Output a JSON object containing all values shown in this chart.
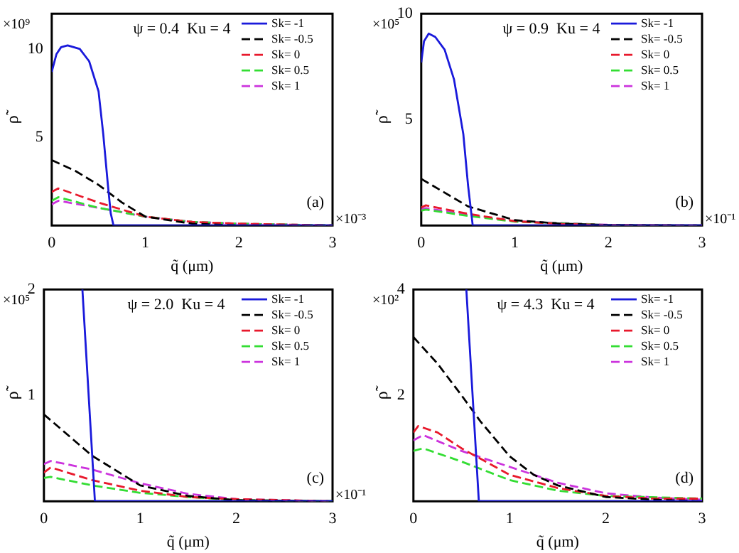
{
  "chart_data": [
    {
      "type": "line",
      "xlabel": "q̃ (μm)",
      "ylabel": "ρ̃",
      "xlim": [
        0,
        3
      ],
      "xticks": [
        0,
        1,
        2,
        3
      ],
      "ylim": [
        0,
        12
      ],
      "yticks": [
        5,
        10
      ],
      "legend": "top right",
      "annotations": [
        "ψ = 0.4  Ku = 4",
        "(a)",
        "×10⁹",
        "×10⁻³"
      ],
      "series": [
        {
          "name": "Sk= -1",
          "color": "#1a1adb",
          "line_style": "solid",
          "x": [
            0,
            0.05,
            0.1,
            0.17,
            0.3,
            0.4,
            0.5,
            0.55,
            0.6,
            0.63,
            0.66,
            1,
            2,
            3
          ],
          "values": [
            8.7,
            9.7,
            10.1,
            10.2,
            10.0,
            9.3,
            7.6,
            5.2,
            2.3,
            0.7,
            0,
            0,
            0,
            0
          ]
        },
        {
          "name": "Sk= -0.5",
          "color": "#000000",
          "line_style": "dashed",
          "x": [
            0,
            0.25,
            0.5,
            0.75,
            1,
            1.5,
            2,
            3
          ],
          "values": [
            3.7,
            3.1,
            2.3,
            1.3,
            0.5,
            0.1,
            0,
            0
          ]
        },
        {
          "name": "Sk= 0",
          "color": "#e8192c",
          "line_style": "dashed",
          "x": [
            0,
            0.07,
            0.5,
            1,
            1.5,
            2,
            3
          ],
          "values": [
            1.9,
            2.1,
            1.3,
            0.5,
            0.2,
            0.1,
            0
          ]
        },
        {
          "name": "Sk= 0.5",
          "color": "#33dd33",
          "line_style": "dashed",
          "x": [
            0,
            0.07,
            0.5,
            1,
            1.5,
            2,
            3
          ],
          "values": [
            1.4,
            1.6,
            1.0,
            0.5,
            0.2,
            0.1,
            0
          ]
        },
        {
          "name": "Sk= 1",
          "color": "#cc33dd",
          "line_style": "dashed",
          "x": [
            0,
            0.07,
            0.5,
            1,
            1.5,
            2,
            3
          ],
          "values": [
            1.2,
            1.4,
            1.0,
            0.5,
            0.2,
            0.1,
            0
          ]
        }
      ]
    },
    {
      "type": "line",
      "xlabel": "q̃ (μm)",
      "ylabel": "ρ̃",
      "xlim": [
        0,
        3
      ],
      "xticks": [
        0,
        1,
        2,
        3
      ],
      "ylim": [
        0,
        10
      ],
      "yticks": [
        5,
        10
      ],
      "legend": "top right",
      "annotations": [
        "ψ = 0.9  Ku = 4",
        "(b)",
        "×10⁵",
        "×10⁻¹"
      ],
      "series": [
        {
          "name": "Sk= -1",
          "color": "#1a1adb",
          "line_style": "solid",
          "x": [
            0,
            0.03,
            0.08,
            0.15,
            0.25,
            0.35,
            0.45,
            0.5,
            0.55,
            1,
            2,
            3
          ],
          "values": [
            7.7,
            8.7,
            9.06,
            8.9,
            8.3,
            6.9,
            4.3,
            1.9,
            0,
            0,
            0,
            0
          ]
        },
        {
          "name": "Sk= -0.5",
          "color": "#000000",
          "line_style": "dashed",
          "x": [
            0,
            0.5,
            1,
            1.5,
            2,
            3
          ],
          "values": [
            2.2,
            0.9,
            0.25,
            0.08,
            0.02,
            0
          ]
        },
        {
          "name": "Sk= 0",
          "color": "#e8192c",
          "line_style": "dashed",
          "x": [
            0,
            0.05,
            0.5,
            1,
            1.5,
            2,
            3
          ],
          "values": [
            0.85,
            0.95,
            0.55,
            0.2,
            0.07,
            0.02,
            0
          ]
        },
        {
          "name": "Sk= 0.5",
          "color": "#33dd33",
          "line_style": "dashed",
          "x": [
            0,
            0.05,
            0.5,
            1,
            2,
            3
          ],
          "values": [
            0.7,
            0.75,
            0.45,
            0.18,
            0.02,
            0
          ]
        },
        {
          "name": "Sk= 1",
          "color": "#cc33dd",
          "line_style": "dashed",
          "x": [
            0,
            0.05,
            0.5,
            1,
            2,
            3
          ],
          "values": [
            0.75,
            0.82,
            0.5,
            0.2,
            0.03,
            0
          ]
        }
      ]
    },
    {
      "type": "line",
      "xlabel": "q̃ (μm)",
      "ylabel": "ρ̃",
      "xlim": [
        0,
        3
      ],
      "xticks": [
        0,
        1,
        2,
        3
      ],
      "ylim": [
        0,
        2
      ],
      "yticks": [
        1,
        2
      ],
      "legend": "top right",
      "annotations": [
        "ψ = 2.0  Ku = 4",
        "(c)",
        "×10⁵",
        "×10⁻¹"
      ],
      "series": [
        {
          "name": "Sk= -1",
          "color": "#1a1adb",
          "line_style": "solid",
          "x": [
            0.4,
            0.53,
            1,
            2,
            3
          ],
          "values": [
            2,
            0,
            0,
            0,
            0
          ]
        },
        {
          "name": "Sk= -0.5",
          "color": "#000000",
          "line_style": "dashed",
          "x": [
            0,
            0.5,
            1,
            1.5,
            2,
            3
          ],
          "values": [
            0.82,
            0.43,
            0.15,
            0.05,
            0.01,
            0
          ]
        },
        {
          "name": "Sk= 0",
          "color": "#e8192c",
          "line_style": "dashed",
          "x": [
            0,
            0.07,
            0.5,
            1,
            1.5,
            2,
            3
          ],
          "values": [
            0.27,
            0.32,
            0.2,
            0.1,
            0.04,
            0.02,
            0
          ]
        },
        {
          "name": "Sk= 0.5",
          "color": "#33dd33",
          "line_style": "dashed",
          "x": [
            0,
            0.07,
            0.5,
            1,
            1.5,
            2,
            3
          ],
          "values": [
            0.22,
            0.23,
            0.15,
            0.08,
            0.04,
            0.01,
            0
          ]
        },
        {
          "name": "Sk= 1",
          "color": "#cc33dd",
          "line_style": "dashed",
          "x": [
            0,
            0.07,
            0.5,
            1,
            1.5,
            2,
            3
          ],
          "values": [
            0.35,
            0.38,
            0.3,
            0.17,
            0.07,
            0.02,
            0
          ]
        }
      ]
    },
    {
      "type": "line",
      "xlabel": "q̃ (μm)",
      "ylabel": "ρ̃",
      "xlim": [
        0,
        3
      ],
      "xticks": [
        0,
        1,
        2,
        3
      ],
      "ylim": [
        0,
        4
      ],
      "yticks": [
        2,
        4
      ],
      "legend": "top right",
      "annotations": [
        "ψ = 4.3  Ku = 4",
        "(d)",
        "×10²"
      ],
      "series": [
        {
          "name": "Sk= -1",
          "color": "#1a1adb",
          "line_style": "solid",
          "x": [
            0.55,
            0.68,
            1,
            2,
            3
          ],
          "values": [
            4,
            0,
            0,
            0,
            0
          ]
        },
        {
          "name": "Sk= -0.5",
          "color": "#000000",
          "line_style": "dashed",
          "x": [
            0,
            0.25,
            0.5,
            0.7,
            1,
            1.25,
            1.5,
            2,
            2.5,
            3
          ],
          "values": [
            3.1,
            2.6,
            2.0,
            1.5,
            0.85,
            0.5,
            0.3,
            0.08,
            0.03,
            0
          ]
        },
        {
          "name": "Sk= 0",
          "color": "#e8192c",
          "line_style": "dashed",
          "x": [
            0,
            0.05,
            0.25,
            0.5,
            0.75,
            1,
            1.5,
            2,
            2.5,
            3
          ],
          "values": [
            1.3,
            1.42,
            1.3,
            1.0,
            0.75,
            0.5,
            0.25,
            0.1,
            0.05,
            0.05
          ]
        },
        {
          "name": "Sk= 0.5",
          "color": "#33dd33",
          "line_style": "dashed",
          "x": [
            0,
            0.1,
            0.5,
            1,
            1.5,
            2,
            3
          ],
          "values": [
            0.95,
            1.0,
            0.75,
            0.4,
            0.2,
            0.1,
            0.05
          ]
        },
        {
          "name": "Sk= 1",
          "color": "#cc33dd",
          "line_style": "dashed",
          "x": [
            0,
            0.1,
            0.5,
            1,
            1.5,
            2,
            2.5,
            3
          ],
          "values": [
            1.15,
            1.25,
            0.95,
            0.65,
            0.35,
            0.15,
            0.07,
            0.03
          ]
        }
      ]
    }
  ]
}
